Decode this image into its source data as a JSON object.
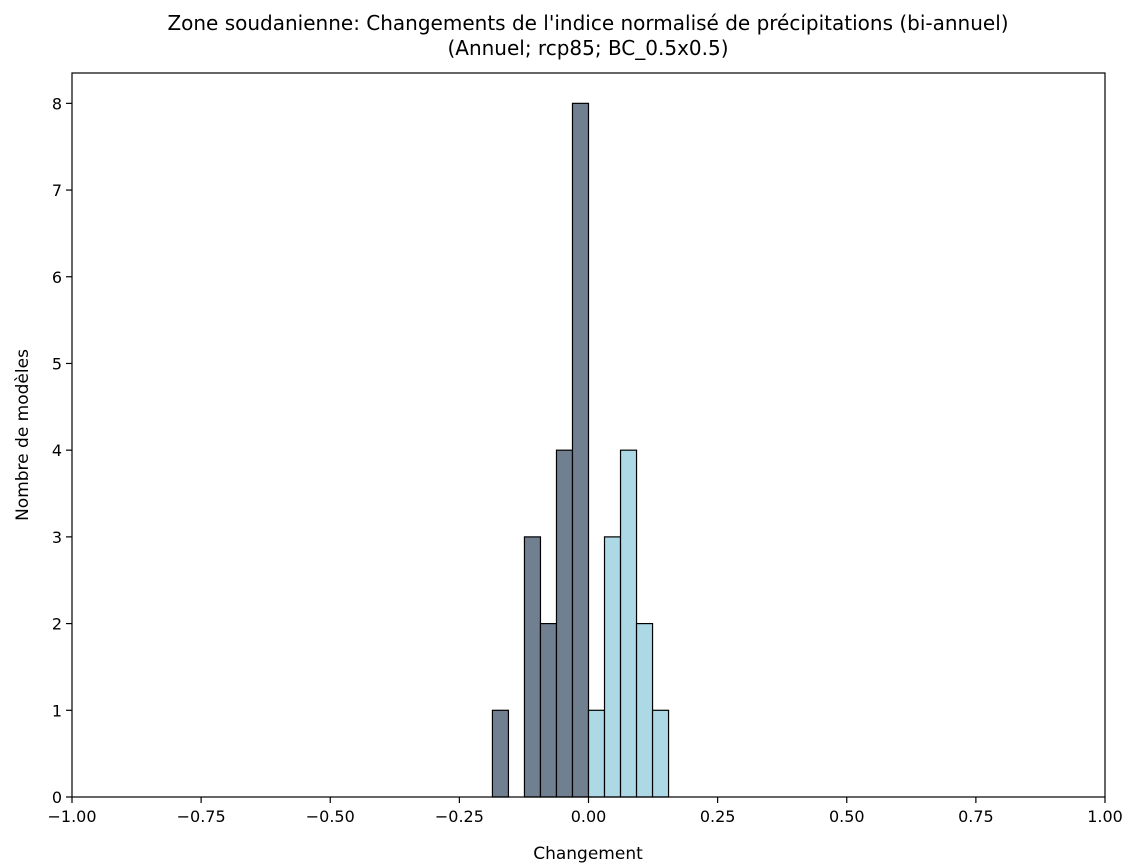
{
  "chart_data": {
    "type": "bar",
    "title": "Zone soudanienne: Changements de l'indice normalisé de précipitations (bi-annuel)",
    "subtitle": "(Annuel; rcp85; BC_0.5x0.5)",
    "xlabel": "Changement",
    "ylabel": "Nombre de modèles",
    "xlim": [
      -1.0,
      1.0
    ],
    "ylim": [
      0,
      8.35
    ],
    "grid": false,
    "bin_width": 0.031,
    "x_ticks": [
      -1.0,
      -0.75,
      -0.5,
      -0.25,
      0.0,
      0.25,
      0.5,
      0.75,
      1.0
    ],
    "x_tick_labels": [
      "−1.00",
      "−0.75",
      "−0.50",
      "−0.25",
      "0.00",
      "0.25",
      "0.50",
      "0.75",
      "1.00"
    ],
    "y_ticks": [
      0,
      1,
      2,
      3,
      4,
      5,
      6,
      7,
      8
    ],
    "y_tick_labels": [
      "0",
      "1",
      "2",
      "3",
      "4",
      "5",
      "6",
      "7",
      "8"
    ],
    "series": [
      {
        "color": "#708090",
        "bins": [
          {
            "x_start": -0.186,
            "count": 1
          },
          {
            "x_start": -0.155,
            "count": 0
          },
          {
            "x_start": -0.124,
            "count": 3
          },
          {
            "x_start": -0.093,
            "count": 2
          },
          {
            "x_start": -0.062,
            "count": 4
          },
          {
            "x_start": -0.031,
            "count": 8
          }
        ]
      },
      {
        "color": "#add8e6",
        "bins": [
          {
            "x_start": 0.0,
            "count": 1
          },
          {
            "x_start": 0.031,
            "count": 3
          },
          {
            "x_start": 0.062,
            "count": 4
          },
          {
            "x_start": 0.093,
            "count": 2
          },
          {
            "x_start": 0.124,
            "count": 1
          },
          {
            "x_start": 0.155,
            "count": 0
          }
        ]
      }
    ]
  }
}
